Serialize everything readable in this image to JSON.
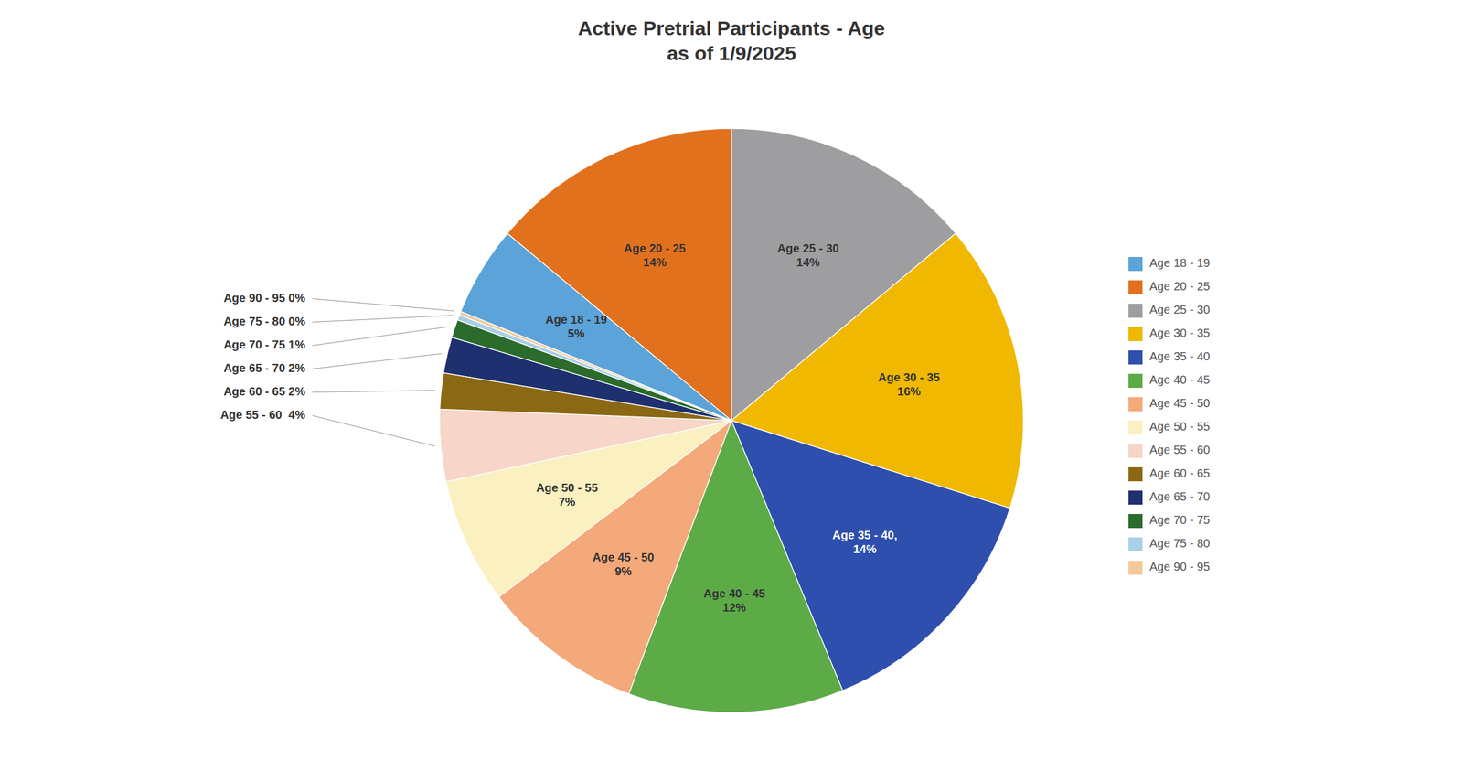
{
  "chart_data": {
    "type": "pie",
    "title": "Active Pretrial Participants - Age\nas of 1/9/2025",
    "categories": [
      "Age 25 - 30",
      "Age 30 - 35",
      "Age 35 - 40",
      "Age 40 - 45",
      "Age 45 - 50",
      "Age 50 - 55",
      "Age 55 - 60",
      "Age 60 - 65",
      "Age 65 - 70",
      "Age 70 - 75",
      "Age 75 - 80",
      "Age 90 - 95",
      "Age 18 - 19",
      "Age 20 - 25"
    ],
    "values": [
      14,
      16,
      14,
      12,
      9,
      7,
      4,
      2,
      2,
      1,
      0.3,
      0.2,
      5,
      14
    ],
    "value_labels": [
      "Age 25 - 30\n14%",
      "Age 30 - 35\n16%",
      "Age 35 - 40,\n14%",
      "Age 40 - 45\n12%",
      "Age 45 - 50\n9%",
      "Age 50 - 55\n7%",
      "Age 55 - 60  4%",
      "Age 60 - 65 2%",
      "Age 65 - 70 2%",
      "Age 70 - 75 1%",
      "Age 75 - 80 0%",
      "Age 90 - 95 0%",
      "Age 18 - 19\n5%",
      "Age 20 - 25\n14%"
    ],
    "colors": [
      "#9E9EA0",
      "#F0B800",
      "#2E4FAE",
      "#5DAB47",
      "#F4A97A",
      "#FAF0C0",
      "#F7D5C8",
      "#8B6914",
      "#1F3070",
      "#2B6B2B",
      "#A8D0E6",
      "#F4C99A",
      "#5BA3D9",
      "#E2711D"
    ],
    "data_labels": true,
    "legend": "right"
  }
}
